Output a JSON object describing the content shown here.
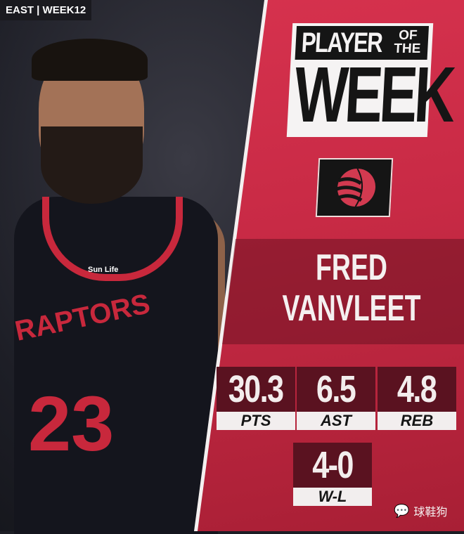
{
  "header_tag": "EAST | WEEK12",
  "title": {
    "line1": "PLAYER",
    "of": "OF",
    "the": "THE",
    "line2": "WEEK"
  },
  "team_logo": "raptors-basketball-claw-icon",
  "player": {
    "first": "FRED",
    "last": "VANVLEET"
  },
  "jersey": {
    "text": "RAPTORS",
    "number": "23",
    "sponsor": "Sun Life"
  },
  "stats": [
    {
      "value": "30.3",
      "label": "PTS"
    },
    {
      "value": "6.5",
      "label": "AST"
    },
    {
      "value": "4.8",
      "label": "REB"
    },
    {
      "value": "4-0",
      "label": "W-L"
    }
  ],
  "watermark": "球鞋狗",
  "colors": {
    "panel_red": "#c82a45",
    "dark": "#151515",
    "stat_box": "#5a1220"
  }
}
